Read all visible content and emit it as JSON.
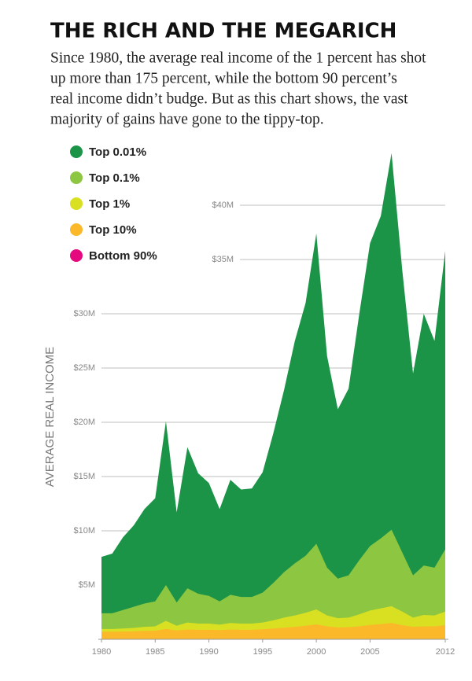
{
  "chart_data": {
    "type": "area",
    "title": "THE RICH AND THE MEGARICH",
    "subtitle": [
      "Since 1980, the average real income of the 1 percent has shot",
      "up more than 175 percent, while the bottom 90 percent’s",
      "real income didn’t budge. But as this chart shows, the vast",
      "majority of gains have gone to the tippy-top."
    ],
    "y_label": "AVERAGE REAL INCOME",
    "x": [
      1980,
      1981,
      1982,
      1983,
      1984,
      1985,
      1986,
      1987,
      1988,
      1989,
      1990,
      1991,
      1992,
      1993,
      1994,
      1995,
      1996,
      1997,
      1998,
      1999,
      2000,
      2001,
      2002,
      2003,
      2004,
      2005,
      2006,
      2007,
      2008,
      2009,
      2010,
      2011,
      2012
    ],
    "xlim": [
      1980,
      2012
    ],
    "xticks": [
      1980,
      1985,
      1990,
      1995,
      2000,
      2005,
      2012
    ],
    "ylim": [
      0,
      45
    ],
    "yticks": [
      {
        "value": 5,
        "label": "$5M"
      },
      {
        "value": 10,
        "label": "$10M"
      },
      {
        "value": 15,
        "label": "$15M"
      },
      {
        "value": 20,
        "label": "$20M"
      },
      {
        "value": 25,
        "label": "$25M"
      },
      {
        "value": 30,
        "label": "$30M"
      },
      {
        "value": 35,
        "label": "$35M"
      },
      {
        "value": 40,
        "label": "$40M"
      }
    ],
    "grid": true,
    "series": [
      {
        "name": "Top 0.01%",
        "color": "#1b9447",
        "values": [
          7.6,
          7.9,
          9.4,
          10.5,
          12.0,
          13.0,
          20.1,
          11.7,
          17.7,
          15.3,
          14.4,
          12.0,
          14.7,
          13.8,
          13.9,
          15.4,
          19.0,
          23.0,
          27.5,
          31.0,
          37.4,
          26.1,
          21.2,
          23.1,
          30.0,
          36.5,
          39.0,
          44.8,
          34.0,
          24.5,
          30.0,
          27.5,
          35.8
        ]
      },
      {
        "name": "Top 0.1%",
        "color": "#8dc641",
        "values": [
          2.4,
          2.4,
          2.7,
          3.0,
          3.3,
          3.5,
          5.0,
          3.4,
          4.7,
          4.2,
          4.0,
          3.5,
          4.1,
          3.9,
          3.9,
          4.3,
          5.2,
          6.2,
          7.0,
          7.7,
          8.8,
          6.6,
          5.6,
          5.9,
          7.3,
          8.6,
          9.3,
          10.1,
          8.0,
          5.9,
          6.8,
          6.6,
          8.3
        ]
      },
      {
        "name": "Top 1%",
        "color": "#d9e021",
        "values": [
          0.95,
          0.95,
          1.0,
          1.05,
          1.15,
          1.2,
          1.7,
          1.25,
          1.55,
          1.45,
          1.45,
          1.35,
          1.5,
          1.45,
          1.45,
          1.55,
          1.75,
          2.0,
          2.2,
          2.45,
          2.75,
          2.2,
          1.95,
          2.0,
          2.3,
          2.65,
          2.85,
          3.05,
          2.55,
          2.0,
          2.25,
          2.2,
          2.55
        ]
      },
      {
        "name": "Top 10%",
        "color": "#fbb829",
        "values": [
          0.7,
          0.7,
          0.72,
          0.74,
          0.78,
          0.8,
          0.95,
          0.82,
          0.9,
          0.88,
          0.88,
          0.85,
          0.9,
          0.88,
          0.88,
          0.92,
          1.0,
          1.08,
          1.15,
          1.25,
          1.38,
          1.2,
          1.1,
          1.12,
          1.2,
          1.32,
          1.4,
          1.5,
          1.3,
          1.15,
          1.2,
          1.2,
          1.3
        ]
      },
      {
        "name": "Bottom 90%",
        "color": "#e5097f",
        "values": [
          0.033,
          0.033,
          0.033,
          0.033,
          0.033,
          0.033,
          0.033,
          0.033,
          0.033,
          0.033,
          0.033,
          0.033,
          0.033,
          0.033,
          0.033,
          0.033,
          0.033,
          0.033,
          0.033,
          0.033,
          0.033,
          0.033,
          0.033,
          0.033,
          0.033,
          0.033,
          0.033,
          0.033,
          0.033,
          0.033,
          0.033,
          0.033,
          0.033
        ]
      }
    ]
  }
}
